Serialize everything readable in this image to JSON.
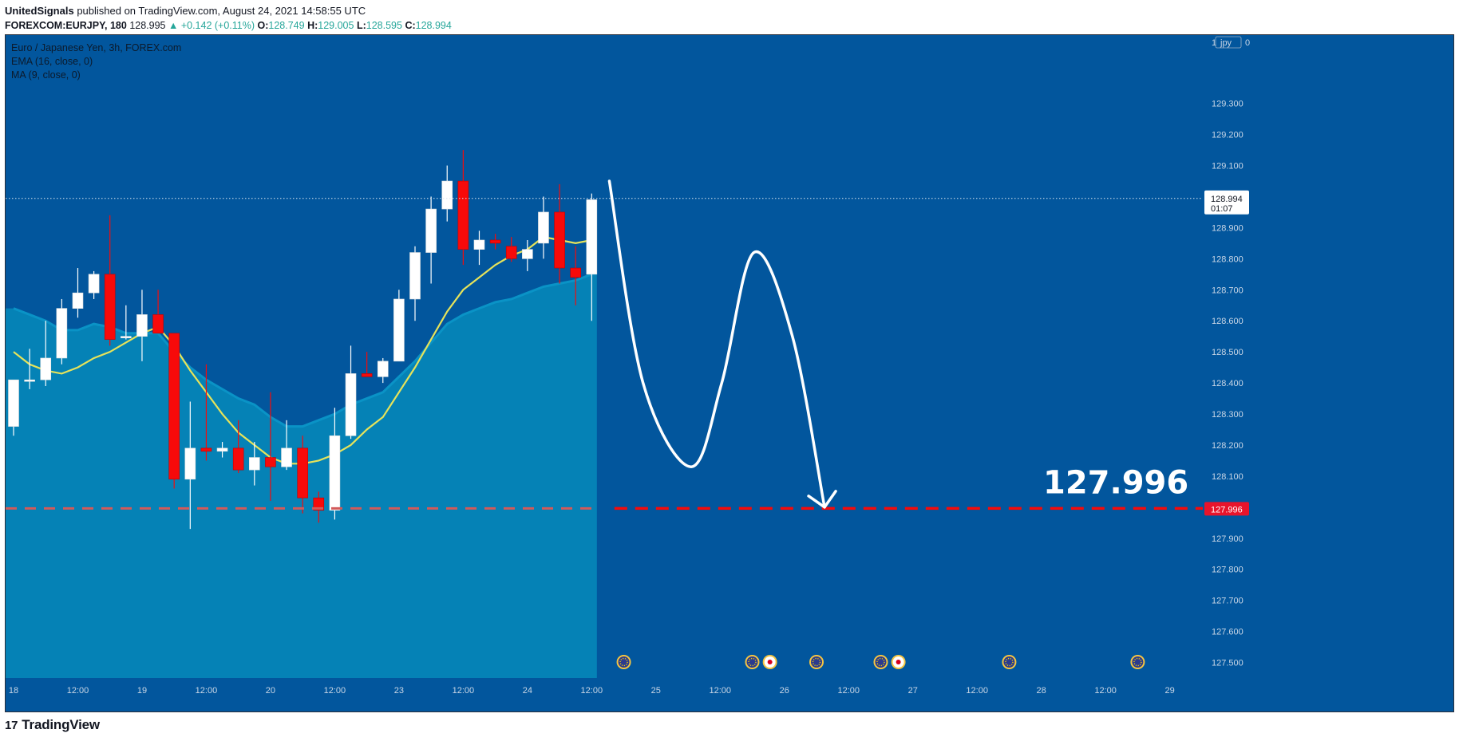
{
  "header": {
    "author": "UnitedSignals",
    "published_text": "published on TradingView.com, August 24, 2021 14:58:55 UTC",
    "symbol": "FOREXCOM:EURJPY, 180",
    "last_price": "128.995",
    "change": "▲ +0.142 (+0.11%)",
    "o_label": "O:",
    "o_value": "128.749",
    "h_label": "H:",
    "h_value": "129.005",
    "l_label": "L:",
    "l_value": "128.595",
    "c_label": "C:",
    "c_value": "128.994"
  },
  "legend": {
    "title": "Euro / Japanese Yen, 3h, FOREX.com",
    "ema": "EMA (16, close, 0)",
    "ma": "MA (9, close, 0)"
  },
  "footer": {
    "brand": "TradingView",
    "brand_mark": "17"
  },
  "colors": {
    "background": "#02569d",
    "area_fill": "#0582b6",
    "ema_line": "#0a93c6",
    "ma_line": "#e6e35a",
    "bull_candle": "#ffffff",
    "bear_candle": "#f70a0a",
    "target_line": "#f70a0a",
    "projection": "#ffffff"
  },
  "chart_data": {
    "type": "candlestick",
    "ylim": [
      127.45,
      129.52
    ],
    "y_ticks": [
      "129.300",
      "129.200",
      "129.100",
      "128.900",
      "128.800",
      "128.700",
      "128.600",
      "128.500",
      "128.400",
      "128.300",
      "128.200",
      "128.100",
      "127.900",
      "127.800",
      "127.700",
      "127.600",
      "127.500"
    ],
    "y_top_tick_partial": "1",
    "y_corner_label": "jpy",
    "y_corner_tick": "0",
    "x_labels": [
      "18",
      "12:00",
      "19",
      "12:00",
      "20",
      "12:00",
      "23",
      "12:00",
      "24",
      "12:00",
      "25",
      "12:00",
      "26",
      "12:00",
      "27",
      "12:00",
      "28",
      "12:00",
      "29"
    ],
    "current_price": {
      "value": 128.994,
      "label": "128.994",
      "countdown": "01:07"
    },
    "target": {
      "value": 127.996,
      "label": "127.996",
      "axis_label": "127.996"
    },
    "candles": [
      {
        "o": 128.26,
        "h": 128.41,
        "l": 128.23,
        "c": 128.41
      },
      {
        "o": 128.41,
        "h": 128.51,
        "l": 128.38,
        "c": 128.41
      },
      {
        "o": 128.41,
        "h": 128.6,
        "l": 128.39,
        "c": 128.48
      },
      {
        "o": 128.48,
        "h": 128.67,
        "l": 128.46,
        "c": 128.64
      },
      {
        "o": 128.64,
        "h": 128.77,
        "l": 128.61,
        "c": 128.69
      },
      {
        "o": 128.69,
        "h": 128.76,
        "l": 128.67,
        "c": 128.75
      },
      {
        "o": 128.75,
        "h": 128.94,
        "l": 128.52,
        "c": 128.54
      },
      {
        "o": 128.55,
        "h": 128.65,
        "l": 128.54,
        "c": 128.55
      },
      {
        "o": 128.55,
        "h": 128.7,
        "l": 128.47,
        "c": 128.62
      },
      {
        "o": 128.62,
        "h": 128.7,
        "l": 128.57,
        "c": 128.56
      },
      {
        "o": 128.56,
        "h": 128.56,
        "l": 128.06,
        "c": 128.09
      },
      {
        "o": 128.09,
        "h": 128.34,
        "l": 127.93,
        "c": 128.19
      },
      {
        "o": 128.19,
        "h": 128.46,
        "l": 128.15,
        "c": 128.18
      },
      {
        "o": 128.18,
        "h": 128.21,
        "l": 128.16,
        "c": 128.19
      },
      {
        "o": 128.19,
        "h": 128.28,
        "l": 128.11,
        "c": 128.12
      },
      {
        "o": 128.12,
        "h": 128.21,
        "l": 128.07,
        "c": 128.16
      },
      {
        "o": 128.16,
        "h": 128.37,
        "l": 128.02,
        "c": 128.13
      },
      {
        "o": 128.13,
        "h": 128.28,
        "l": 128.12,
        "c": 128.19
      },
      {
        "o": 128.19,
        "h": 128.23,
        "l": 127.98,
        "c": 128.03
      },
      {
        "o": 128.03,
        "h": 128.05,
        "l": 127.95,
        "c": 127.99
      },
      {
        "o": 127.99,
        "h": 128.32,
        "l": 127.96,
        "c": 128.23
      },
      {
        "o": 128.23,
        "h": 128.52,
        "l": 128.22,
        "c": 128.43
      },
      {
        "o": 128.43,
        "h": 128.5,
        "l": 128.42,
        "c": 128.42
      },
      {
        "o": 128.42,
        "h": 128.48,
        "l": 128.4,
        "c": 128.47
      },
      {
        "o": 128.47,
        "h": 128.7,
        "l": 128.47,
        "c": 128.67
      },
      {
        "o": 128.67,
        "h": 128.84,
        "l": 128.6,
        "c": 128.82
      },
      {
        "o": 128.82,
        "h": 129.0,
        "l": 128.72,
        "c": 128.96
      },
      {
        "o": 128.96,
        "h": 129.1,
        "l": 128.92,
        "c": 129.05
      },
      {
        "o": 129.05,
        "h": 129.15,
        "l": 128.78,
        "c": 128.83
      },
      {
        "o": 128.83,
        "h": 128.89,
        "l": 128.78,
        "c": 128.86
      },
      {
        "o": 128.86,
        "h": 128.88,
        "l": 128.83,
        "c": 128.85
      },
      {
        "o": 128.84,
        "h": 128.87,
        "l": 128.79,
        "c": 128.8
      },
      {
        "o": 128.8,
        "h": 128.86,
        "l": 128.76,
        "c": 128.83
      },
      {
        "o": 128.85,
        "h": 129.0,
        "l": 128.8,
        "c": 128.95
      },
      {
        "o": 128.95,
        "h": 129.04,
        "l": 128.72,
        "c": 128.77
      },
      {
        "o": 128.77,
        "h": 128.84,
        "l": 128.65,
        "c": 128.74
      },
      {
        "o": 128.75,
        "h": 129.01,
        "l": 128.6,
        "c": 128.99
      }
    ],
    "ema_16": [
      128.64,
      128.62,
      128.6,
      128.57,
      128.57,
      128.59,
      128.58,
      128.56,
      128.56,
      128.56,
      128.5,
      128.45,
      128.41,
      128.38,
      128.35,
      128.33,
      128.29,
      128.26,
      128.26,
      128.28,
      128.3,
      128.33,
      128.35,
      128.37,
      128.42,
      128.47,
      128.53,
      128.59,
      128.62,
      128.64,
      128.66,
      128.67,
      128.69,
      128.71,
      128.72,
      128.73,
      128.75
    ],
    "ma_9": [
      128.5,
      128.46,
      128.44,
      128.43,
      128.45,
      128.48,
      128.5,
      128.53,
      128.56,
      128.58,
      128.52,
      128.44,
      128.37,
      128.3,
      128.24,
      128.2,
      128.16,
      128.14,
      128.14,
      128.15,
      128.17,
      128.2,
      128.25,
      128.29,
      128.37,
      128.45,
      128.54,
      128.63,
      128.7,
      128.74,
      128.78,
      128.81,
      128.83,
      128.87,
      128.86,
      128.85,
      128.86
    ],
    "projection_path": [
      {
        "bar": 37.1,
        "price": 129.05
      },
      {
        "bar": 39.2,
        "price": 128.4
      },
      {
        "bar": 42.2,
        "price": 128.13
      },
      {
        "bar": 44.1,
        "price": 128.4
      },
      {
        "bar": 46.1,
        "price": 128.82
      },
      {
        "bar": 48.5,
        "price": 128.55
      },
      {
        "bar": 50.5,
        "price": 128.0
      }
    ],
    "event_markers": [
      {
        "bar": 38.0,
        "type": "eu"
      },
      {
        "bar": 46.0,
        "type": "eu"
      },
      {
        "bar": 47.1,
        "type": "jp"
      },
      {
        "bar": 50.0,
        "type": "eu"
      },
      {
        "bar": 54.0,
        "type": "eu"
      },
      {
        "bar": 55.1,
        "type": "jp"
      },
      {
        "bar": 62.0,
        "type": "eu"
      },
      {
        "bar": 70.0,
        "type": "eu"
      }
    ]
  }
}
